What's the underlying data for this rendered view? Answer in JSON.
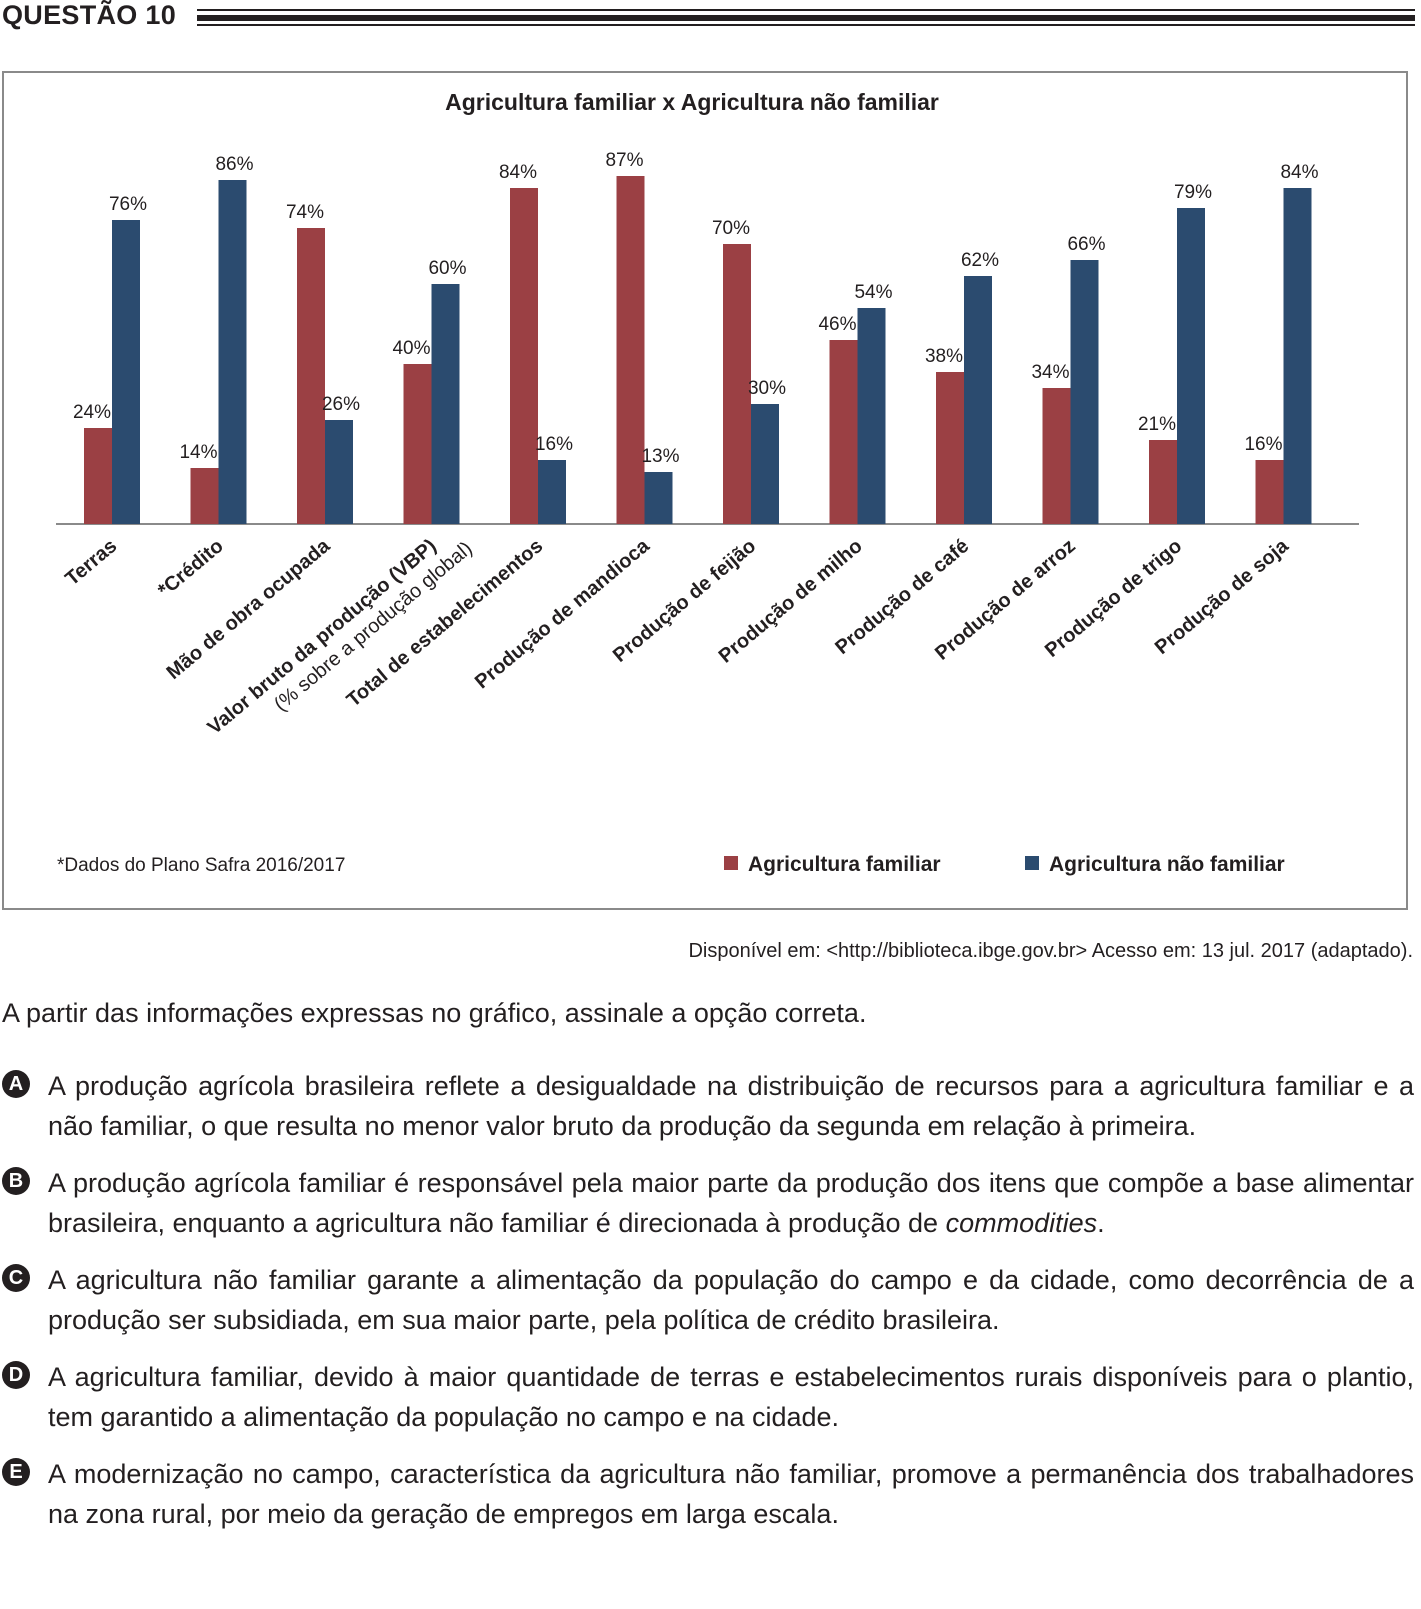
{
  "header": {
    "title": "QUESTÃO 10"
  },
  "chart_data": {
    "type": "bar",
    "title": "Agricultura familiar x Agricultura não familiar",
    "categories": [
      [
        "Terras"
      ],
      [
        "*Crédito"
      ],
      [
        "Mão de obra ocupada"
      ],
      [
        "Valor bruto da produção (VBP)",
        "(% sobre a produção global)"
      ],
      [
        "Total de estabelecimentos"
      ],
      [
        "Produção de mandioca"
      ],
      [
        "Produção de feijão"
      ],
      [
        "Produção de milho"
      ],
      [
        "Produção de café"
      ],
      [
        "Produção de arroz"
      ],
      [
        "Produção de trigo"
      ],
      [
        "Produção de soja"
      ]
    ],
    "series": [
      {
        "name": "Agricultura familiar",
        "color": "#9b4044",
        "values": [
          24,
          14,
          74,
          40,
          84,
          87,
          70,
          46,
          38,
          34,
          21,
          16
        ]
      },
      {
        "name": "Agricultura não familiar",
        "color": "#2b4b6f",
        "values": [
          76,
          86,
          26,
          60,
          16,
          13,
          30,
          54,
          62,
          66,
          79,
          84
        ]
      }
    ],
    "value_suffix": "%",
    "ylim": [
      0,
      100
    ],
    "grid": false,
    "legend": "bottom-right",
    "footnote": "*Dados do Plano Safra 2016/2017"
  },
  "source": "Disponível em: <http://biblioteca.ibge.gov.br> Acesso em: 13 jul. 2017 (adaptado).",
  "prompt": "A partir das informações expressas no gráfico, assinale a opção correta.",
  "options": [
    {
      "letter": "A",
      "text": "A produção agrícola brasileira reflete a desigualdade na distribuição de recursos para a agricultura familiar e a não familiar, o que resulta no menor valor bruto da produção da segunda em relação à primeira."
    },
    {
      "letter": "B",
      "text": "A produção agrícola familiar é responsável pela maior parte da produção dos itens que compõe a base alimentar brasileira, enquanto a agricultura não familiar é direcionada à produção de",
      "italic": "commodities",
      "after": "."
    },
    {
      "letter": "C",
      "text": "A agricultura não familiar garante a alimentação da população do campo e da cidade, como decorrência de a produção ser subsidiada, em sua maior parte, pela política de crédito brasileira."
    },
    {
      "letter": "D",
      "text": "A agricultura familiar, devido à maior quantidade de terras e estabelecimentos rurais disponíveis para o plantio, tem garantido a alimentação da população no campo e na cidade."
    },
    {
      "letter": "E",
      "text": "A modernização no campo, característica da agricultura não familiar, promove a permanência dos trabalhadores na zona rural, por meio da geração de empregos em larga escala."
    }
  ]
}
